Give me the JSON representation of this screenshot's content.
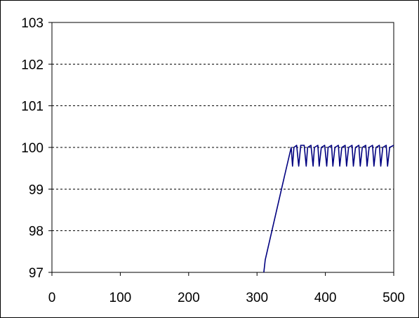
{
  "chart_data": {
    "type": "line",
    "title": "",
    "xlabel": "",
    "ylabel": "",
    "xlim": [
      0,
      500
    ],
    "ylim": [
      97,
      103
    ],
    "x_ticks": [
      0,
      100,
      200,
      300,
      400,
      500
    ],
    "y_ticks": [
      97,
      98,
      99,
      100,
      101,
      102,
      103
    ],
    "x_tick_labels": [
      "0",
      "100",
      "200",
      "300",
      "400",
      "500"
    ],
    "y_tick_labels": [
      "97",
      "98",
      "99",
      "100",
      "101",
      "102",
      "103"
    ],
    "grid": "horizontal-dashed",
    "legend": "none",
    "series": [
      {
        "color": "#000080",
        "x": [
          310,
          312,
          340,
          350,
          352,
          354,
          358,
          361,
          364,
          369,
          372,
          374,
          379,
          382,
          384,
          389,
          391,
          394,
          399,
          402,
          404,
          409,
          411,
          414,
          419,
          421,
          424,
          429,
          431,
          434,
          439,
          441,
          444,
          449,
          451,
          454,
          459,
          461,
          464,
          469,
          471,
          474,
          479,
          481,
          484,
          489,
          491,
          494,
          500
        ],
        "values": [
          97.0,
          97.3,
          99.3,
          100.0,
          99.55,
          100.0,
          100.05,
          99.55,
          100.05,
          100.05,
          99.55,
          100.0,
          100.05,
          99.55,
          100.0,
          100.05,
          99.55,
          100.0,
          100.05,
          99.55,
          100.0,
          100.05,
          99.55,
          100.0,
          100.05,
          99.55,
          100.0,
          100.05,
          99.55,
          100.0,
          100.05,
          99.55,
          100.0,
          100.05,
          99.55,
          100.0,
          100.05,
          99.55,
          100.0,
          100.05,
          99.55,
          100.0,
          100.05,
          99.55,
          100.0,
          100.05,
          99.55,
          100.0,
          100.05
        ]
      }
    ]
  }
}
